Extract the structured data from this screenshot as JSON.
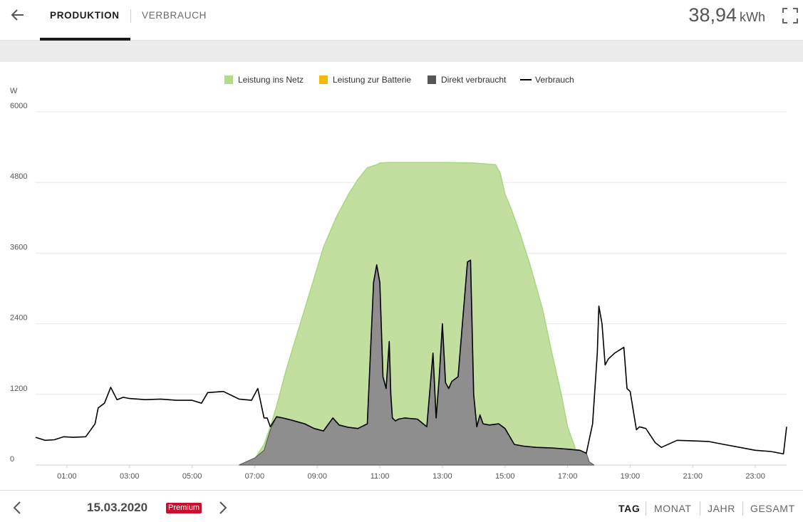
{
  "header": {
    "tabs": [
      {
        "label": "PRODUKTION",
        "active": true
      },
      {
        "label": "VERBRAUCH",
        "active": false
      }
    ],
    "total_value": "38,94",
    "total_unit": "kWh",
    "back_icon": "arrow-left-icon",
    "fullscreen_icon": "fullscreen-icon"
  },
  "footer": {
    "date": "15.03.2020",
    "badge": "Premium",
    "periods": [
      "TAG",
      "MONAT",
      "JAHR",
      "GESAMT"
    ],
    "active_period": "TAG"
  },
  "colors": {
    "grid_feed": "#c2dfa0",
    "battery": "#f5b800",
    "direct": "#8e8e8e",
    "consumption": "#000000",
    "badge": "#c8102e"
  },
  "chart_data": {
    "type": "area",
    "ylabel": "W",
    "ylim": [
      0,
      6000
    ],
    "yticks": [
      "0",
      "1200",
      "2400",
      "3600",
      "4800",
      "6000"
    ],
    "xticks": [
      "01:00",
      "03:00",
      "05:00",
      "07:00",
      "09:00",
      "11:00",
      "13:00",
      "15:00",
      "17:00",
      "19:00",
      "21:00",
      "23:00"
    ],
    "xlim_hours": [
      0,
      24
    ],
    "legend_position": "top-center",
    "legend": [
      {
        "name": "Leistung ins Netz",
        "color": "#b6da8c",
        "marker": "square"
      },
      {
        "name": "Leistung zur Batterie",
        "color": "#f5b800",
        "marker": "square"
      },
      {
        "name": "Direkt verbraucht",
        "color": "#555555",
        "marker": "square"
      },
      {
        "name": "Verbrauch",
        "color": "#000000",
        "marker": "line"
      }
    ],
    "series": [
      {
        "name": "Leistung ins Netz",
        "type": "area",
        "x": [
          6.5,
          7.0,
          7.3,
          7.5,
          7.7,
          8.0,
          8.4,
          8.8,
          9.2,
          9.6,
          10.0,
          10.3,
          10.6,
          10.9,
          11.0,
          11.3,
          12.0,
          13.0,
          14.0,
          14.7,
          14.85,
          15.0,
          15.2,
          15.5,
          15.8,
          16.2,
          16.5,
          16.8,
          17.0,
          17.3,
          17.5,
          17.7,
          17.85
        ],
        "y": [
          0,
          100,
          350,
          650,
          1000,
          1600,
          2300,
          3000,
          3700,
          4200,
          4600,
          4850,
          5050,
          5100,
          5130,
          5140,
          5140,
          5140,
          5130,
          5100,
          4950,
          4600,
          4350,
          3900,
          3400,
          2650,
          1900,
          1200,
          650,
          200,
          150,
          50,
          0
        ]
      },
      {
        "name": "Direkt verbraucht",
        "type": "area",
        "x": [
          6.5,
          7.0,
          7.3,
          7.5,
          7.7,
          7.9,
          8.2,
          8.6,
          8.9,
          9.2,
          9.5,
          9.7,
          10.0,
          10.3,
          10.6,
          10.8,
          10.9,
          11.0,
          11.1,
          11.2,
          11.3,
          11.35,
          11.4,
          11.5,
          11.6,
          11.8,
          12.2,
          12.5,
          12.7,
          12.8,
          12.9,
          13.0,
          13.1,
          13.2,
          13.3,
          13.5,
          13.8,
          13.9,
          14.0,
          14.1,
          14.2,
          14.3,
          14.5,
          14.8,
          15.0,
          15.3,
          15.6,
          16.0,
          16.5,
          17.0,
          17.4,
          17.6,
          17.7,
          17.85
        ],
        "y": [
          0,
          120,
          250,
          600,
          820,
          800,
          760,
          700,
          620,
          580,
          800,
          680,
          640,
          620,
          700,
          3100,
          3400,
          3100,
          1500,
          1300,
          2100,
          1200,
          800,
          750,
          780,
          800,
          780,
          650,
          1900,
          800,
          1500,
          2400,
          1400,
          1300,
          1420,
          1500,
          3450,
          3480,
          1200,
          650,
          850,
          700,
          680,
          700,
          620,
          350,
          320,
          300,
          290,
          270,
          250,
          200,
          50,
          0
        ]
      },
      {
        "name": "Verbrauch",
        "type": "line",
        "x": [
          0.0,
          0.3,
          0.6,
          0.9,
          1.2,
          1.6,
          1.9,
          2.0,
          2.2,
          2.4,
          2.6,
          2.8,
          3.0,
          3.5,
          4.0,
          4.5,
          5.0,
          5.3,
          5.5,
          6.0,
          6.5,
          6.9,
          7.1,
          7.3,
          7.4,
          7.5,
          7.7,
          7.9,
          8.2,
          8.6,
          8.9,
          9.2,
          9.5,
          9.7,
          10.0,
          10.3,
          10.6,
          10.8,
          10.9,
          11.0,
          11.1,
          11.2,
          11.3,
          11.35,
          11.4,
          11.5,
          11.6,
          11.8,
          12.2,
          12.5,
          12.7,
          12.8,
          12.9,
          13.0,
          13.1,
          13.2,
          13.3,
          13.5,
          13.8,
          13.9,
          14.0,
          14.1,
          14.2,
          14.3,
          14.5,
          14.8,
          15.0,
          15.3,
          15.6,
          16.0,
          16.5,
          17.0,
          17.4,
          17.6,
          17.8,
          17.95,
          18.0,
          18.1,
          18.2,
          18.3,
          18.5,
          18.8,
          18.9,
          19.0,
          19.2,
          19.3,
          19.5,
          19.8,
          20.0,
          20.5,
          21.0,
          21.5,
          22.0,
          22.5,
          23.0,
          23.5,
          23.8,
          23.9,
          24.0
        ],
        "y": [
          470,
          420,
          430,
          480,
          470,
          480,
          700,
          970,
          1050,
          1320,
          1110,
          1150,
          1130,
          1110,
          1120,
          1100,
          1100,
          1050,
          1230,
          1250,
          1120,
          1100,
          1300,
          800,
          800,
          650,
          820,
          800,
          760,
          700,
          620,
          580,
          800,
          680,
          640,
          620,
          700,
          3100,
          3400,
          3100,
          1500,
          1300,
          2100,
          1200,
          800,
          750,
          780,
          800,
          780,
          650,
          1900,
          800,
          1500,
          2400,
          1400,
          1300,
          1420,
          1500,
          3450,
          3480,
          1200,
          650,
          850,
          700,
          680,
          700,
          620,
          350,
          320,
          300,
          290,
          270,
          250,
          200,
          700,
          1900,
          2700,
          2400,
          1700,
          1800,
          1900,
          2000,
          1300,
          1250,
          600,
          650,
          620,
          380,
          300,
          420,
          410,
          400,
          350,
          300,
          250,
          230,
          200,
          190,
          650
        ]
      }
    ]
  }
}
